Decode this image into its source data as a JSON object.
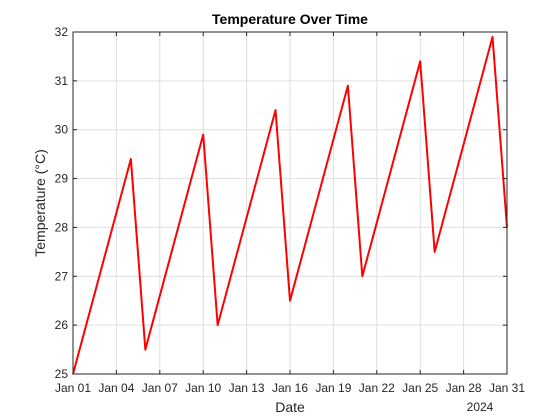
{
  "chart_data": {
    "type": "line",
    "title": "Temperature Over Time",
    "xlabel": "Date",
    "ylabel": "Temperature (°C)",
    "year_label": "2024",
    "line_color": "#ff0000",
    "grid": true,
    "xlim": [
      1,
      31
    ],
    "ylim": [
      25,
      32
    ],
    "x_ticks": [
      {
        "day": 1,
        "label": "Jan 01"
      },
      {
        "day": 4,
        "label": "Jan 04"
      },
      {
        "day": 7,
        "label": "Jan 07"
      },
      {
        "day": 10,
        "label": "Jan 10"
      },
      {
        "day": 13,
        "label": "Jan 13"
      },
      {
        "day": 16,
        "label": "Jan 16"
      },
      {
        "day": 19,
        "label": "Jan 19"
      },
      {
        "day": 22,
        "label": "Jan 22"
      },
      {
        "day": 25,
        "label": "Jan 25"
      },
      {
        "day": 28,
        "label": "Jan 28"
      },
      {
        "day": 31,
        "label": "Jan 31"
      }
    ],
    "y_ticks": [
      25,
      26,
      27,
      28,
      29,
      30,
      31,
      32
    ],
    "series": [
      {
        "name": "Temperature",
        "points": [
          {
            "day": 1,
            "value": 25.0
          },
          {
            "day": 5,
            "value": 29.4
          },
          {
            "day": 6,
            "value": 25.5
          },
          {
            "day": 10,
            "value": 29.9
          },
          {
            "day": 11,
            "value": 26.0
          },
          {
            "day": 15,
            "value": 30.4
          },
          {
            "day": 16,
            "value": 26.5
          },
          {
            "day": 20,
            "value": 30.9
          },
          {
            "day": 21,
            "value": 27.0
          },
          {
            "day": 25,
            "value": 31.4
          },
          {
            "day": 26,
            "value": 27.5
          },
          {
            "day": 30,
            "value": 31.9
          },
          {
            "day": 31,
            "value": 28.0
          }
        ]
      }
    ]
  }
}
